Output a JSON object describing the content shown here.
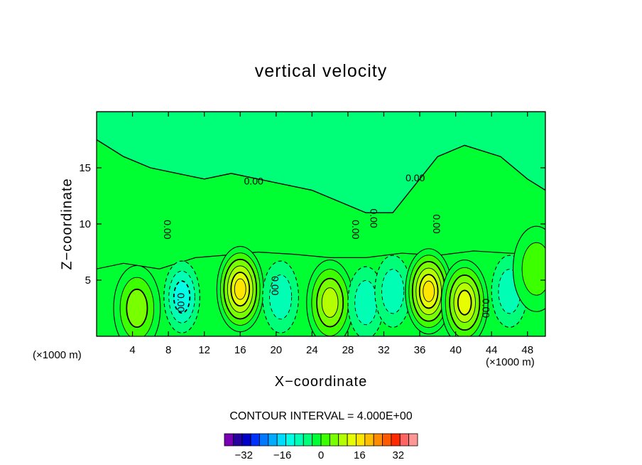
{
  "chart_data": {
    "type": "contour",
    "title": "vertical velocity",
    "xlabel": "X−coordinate",
    "ylabel": "Z−coordinate",
    "x_unit_left": "(×1000 m)",
    "x_unit_right": "(×1000 m)",
    "xlim": [
      0,
      50
    ],
    "ylim": [
      0,
      20
    ],
    "x_ticks": [
      4,
      8,
      12,
      16,
      20,
      24,
      28,
      32,
      36,
      40,
      44,
      48
    ],
    "y_ticks": [
      5,
      10,
      15
    ],
    "contour_interval_label": "CONTOUR INTERVAL = 4.000E+00",
    "contour_interval": 4,
    "contour_labels": [
      "0.00",
      "0.00",
      "0.00",
      "0.00",
      "0.00",
      "0.00",
      "0.00",
      "0.00",
      "0.00"
    ],
    "colorbar": {
      "tick_values": [
        -32,
        -16,
        0,
        16,
        32
      ],
      "tick_labels": [
        "−32",
        "−16",
        "0",
        "16",
        "32"
      ],
      "levels_min": -40,
      "levels_max": 40,
      "colors": [
        "#7a00b4",
        "#2800a0",
        "#0000c8",
        "#0032ff",
        "#0078ff",
        "#00aaff",
        "#00dcff",
        "#00ffe6",
        "#00ffb4",
        "#00ff78",
        "#00ff32",
        "#3cff00",
        "#78ff00",
        "#b4ff00",
        "#e6ff00",
        "#ffe600",
        "#ffbe00",
        "#ff8c00",
        "#ff5a00",
        "#ff2a00",
        "#ff6464",
        "#ff9696"
      ]
    },
    "features": [
      {
        "x": 4.5,
        "z": 2.5,
        "value": 10
      },
      {
        "x": 9.5,
        "z": 3.5,
        "value": -12
      },
      {
        "x": 16,
        "z": 4.2,
        "value": 24
      },
      {
        "x": 20.5,
        "z": 3.5,
        "value": -8
      },
      {
        "x": 26,
        "z": 3,
        "value": 16
      },
      {
        "x": 30,
        "z": 3,
        "value": -8
      },
      {
        "x": 33,
        "z": 4,
        "value": -8
      },
      {
        "x": 37,
        "z": 4,
        "value": 24
      },
      {
        "x": 41,
        "z": 3,
        "value": 20
      },
      {
        "x": 46,
        "z": 4,
        "value": -8
      },
      {
        "x": 49,
        "z": 6,
        "value": 8
      }
    ]
  }
}
